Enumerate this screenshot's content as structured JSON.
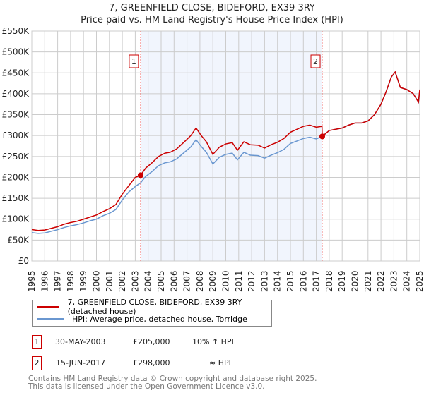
{
  "chart_data": {
    "type": "line",
    "title": "7, GREENFIELD CLOSE, BIDEFORD, EX39 3RY",
    "subtitle": "Price paid vs. HM Land Registry's House Price Index (HPI)",
    "xlim": [
      1995,
      2025
    ],
    "ylim": [
      0,
      550000
    ],
    "y_ticks": [
      0,
      50000,
      100000,
      150000,
      200000,
      250000,
      300000,
      350000,
      400000,
      450000,
      500000,
      550000
    ],
    "y_tick_labels": [
      "£0",
      "£50K",
      "£100K",
      "£150K",
      "£200K",
      "£250K",
      "£300K",
      "£350K",
      "£400K",
      "£450K",
      "£500K",
      "£550K"
    ],
    "x_ticks": [
      "1995",
      "1996",
      "1997",
      "1998",
      "1999",
      "2000",
      "2001",
      "2002",
      "2003",
      "2004",
      "2005",
      "2006",
      "2007",
      "2008",
      "2009",
      "2010",
      "2011",
      "2012",
      "2013",
      "2014",
      "2015",
      "2016",
      "2017",
      "2018",
      "2019",
      "2020",
      "2021",
      "2022",
      "2023",
      "2024",
      "2025"
    ],
    "grid": true,
    "series": [
      {
        "name": "7, GREENFIELD CLOSE, BIDEFORD, EX39 3RY (detached house)",
        "color": "#cc0000",
        "x": [
          1995,
          1995.5,
          1996,
          1996.5,
          1997,
          1997.5,
          1998,
          1998.5,
          1999,
          1999.5,
          2000,
          2000.5,
          2001,
          2001.5,
          2002,
          2002.5,
          2003,
          2003.41,
          2003.8,
          2004.3,
          2004.8,
          2005.3,
          2005.7,
          2006.2,
          2006.8,
          2007.3,
          2007.7,
          2008.1,
          2008.5,
          2009.0,
          2009.5,
          2010.0,
          2010.5,
          2010.9,
          2011.4,
          2011.9,
          2012.5,
          2013.0,
          2013.5,
          2014.0,
          2014.5,
          2015.0,
          2015.5,
          2016.0,
          2016.5,
          2017.0,
          2017.44,
          2017.46,
          2018.0,
          2018.5,
          2019.0,
          2019.5,
          2020.0,
          2020.5,
          2021.0,
          2021.5,
          2022.0,
          2022.4,
          2022.8,
          2023.1,
          2023.5,
          2024.0,
          2024.5,
          2024.9,
          2025
        ],
        "y": [
          75000,
          73000,
          74000,
          78000,
          82000,
          88000,
          92000,
          95000,
          100000,
          105000,
          110000,
          118000,
          125000,
          135000,
          160000,
          180000,
          200000,
          205000,
          222000,
          235000,
          250000,
          258000,
          260000,
          268000,
          285000,
          300000,
          318000,
          300000,
          285000,
          255000,
          272000,
          280000,
          283000,
          265000,
          285000,
          278000,
          277000,
          270000,
          278000,
          284000,
          293000,
          308000,
          315000,
          322000,
          325000,
          320000,
          322000,
          298000,
          312000,
          315000,
          318000,
          325000,
          330000,
          330000,
          335000,
          350000,
          375000,
          405000,
          440000,
          452000,
          415000,
          410000,
          400000,
          380000,
          410000
        ]
      },
      {
        "name": "HPI: Average price, detached house, Torridge",
        "color": "#6a97d0",
        "x": [
          1995,
          1995.5,
          1996,
          1996.5,
          1997,
          1997.5,
          1998,
          1998.5,
          1999,
          1999.5,
          2000,
          2000.5,
          2001,
          2001.5,
          2002,
          2002.5,
          2003,
          2003.41,
          2003.8,
          2004.3,
          2004.8,
          2005.3,
          2005.7,
          2006.2,
          2006.8,
          2007.3,
          2007.7,
          2008.1,
          2008.5,
          2009.0,
          2009.5,
          2010.0,
          2010.5,
          2010.9,
          2011.4,
          2011.9,
          2012.5,
          2013.0,
          2013.5,
          2014.0,
          2014.5,
          2015.0,
          2015.5,
          2016.0,
          2016.5,
          2017.0,
          2017.45,
          2018.0,
          2018.5,
          2019.0,
          2019.5,
          2020.0,
          2020.5,
          2021.0,
          2021.5,
          2022.0,
          2022.4,
          2022.8,
          2023.1,
          2023.5,
          2024.0,
          2024.5,
          2024.9,
          2025
        ],
        "y": [
          68000,
          66000,
          67000,
          71000,
          75000,
          80000,
          84000,
          87000,
          91000,
          96000,
          100000,
          108000,
          114000,
          123000,
          146000,
          165000,
          178000,
          187000,
          202000,
          214000,
          228000,
          235000,
          237000,
          244000,
          260000,
          273000,
          290000,
          274000,
          260000,
          232000,
          248000,
          255000,
          258000,
          242000,
          260000,
          253000,
          252000,
          246000,
          253000,
          259000,
          267000,
          281000,
          287000,
          293000,
          296000,
          292000,
          298000,
          312000,
          315000,
          318000,
          325000,
          330000,
          330000,
          335000,
          350000,
          375000,
          405000,
          440000,
          452000,
          415000,
          410000,
          400000,
          380000,
          405000
        ]
      }
    ],
    "sales": [
      {
        "label": "1",
        "x": 2003.41,
        "y": 205000,
        "date": "30-MAY-2003",
        "price": "£205,000",
        "hpi": "10% ↑ HPI"
      },
      {
        "label": "2",
        "x": 2017.46,
        "y": 298000,
        "date": "15-JUN-2017",
        "price": "£298,000",
        "hpi": "≈ HPI"
      }
    ],
    "legend_position": "below"
  },
  "footer": [
    "Contains HM Land Registry data © Crown copyright and database right 2025.",
    "This data is licensed under the Open Government Licence v3.0."
  ]
}
